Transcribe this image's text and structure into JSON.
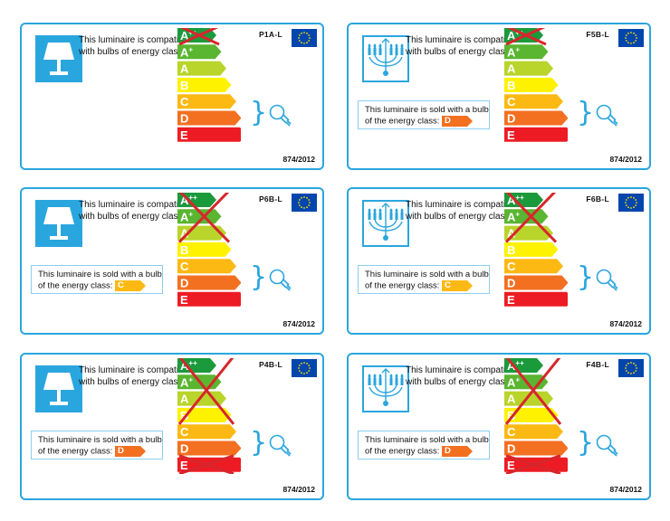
{
  "cards": [
    {
      "code": "P1A-L",
      "icon": "table-lamp-icon",
      "compat_text": "This luminaire is compatible with bulbs of energy classes:",
      "crossed": [
        0
      ],
      "sold": null,
      "regulation": "874/2012"
    },
    {
      "code": "F5B-L",
      "icon": "chandelier-icon",
      "compat_text": "This luminaire is compatible with bulbs of energy classes:",
      "crossed": [
        0
      ],
      "sold": {
        "text": "This luminaire is sold with a bulb of the energy class:",
        "class": "D"
      },
      "regulation": "874/2012"
    },
    {
      "code": "P6B-L",
      "icon": "table-lamp-icon",
      "compat_text": "This luminaire is compatible with bulbs of energy classes:",
      "crossed": [
        0,
        1,
        2
      ],
      "sold": {
        "text": "This luminaire is sold with a bulb of the energy class:",
        "class": "C"
      },
      "regulation": "874/2012"
    },
    {
      "code": "F6B-L",
      "icon": "chandelier-icon",
      "compat_text": "This luminaire is compatible with bulbs of energy classes:",
      "crossed": [
        0,
        1,
        2
      ],
      "sold": {
        "text": "This luminaire is sold with a bulb of the energy class:",
        "class": "C"
      },
      "regulation": "874/2012"
    },
    {
      "code": "P4B-L",
      "icon": "table-lamp-icon",
      "compat_text": "This luminaire is compatible with bulbs of energy classes:",
      "crossed": [
        0,
        1,
        2,
        3,
        6
      ],
      "sold": {
        "text": "This luminaire is sold with a bulb of the energy class:",
        "class": "D"
      },
      "regulation": "874/2012"
    },
    {
      "code": "F4B-L",
      "icon": "chandelier-icon",
      "compat_text": "This luminaire is compatible with bulbs of energy classes:",
      "crossed": [
        0,
        1,
        2,
        3,
        6
      ],
      "sold": {
        "text": "This luminaire is sold with a bulb of the energy class:",
        "class": "D"
      },
      "regulation": "874/2012"
    }
  ],
  "classes": [
    {
      "label": "A++",
      "color": "#1b9a3c"
    },
    {
      "label": "A+",
      "color": "#5ab530"
    },
    {
      "label": "A",
      "color": "#b9d42a"
    },
    {
      "label": "B",
      "color": "#fff200"
    },
    {
      "label": "C",
      "color": "#fdb913"
    },
    {
      "label": "D",
      "color": "#f37021"
    },
    {
      "label": "E",
      "color": "#ed1c24"
    }
  ],
  "colors": {
    "accent": "#2aa6de",
    "eu_flag": "#0046ad",
    "eu_star": "#ffdd00",
    "cross": "#d7262b"
  }
}
